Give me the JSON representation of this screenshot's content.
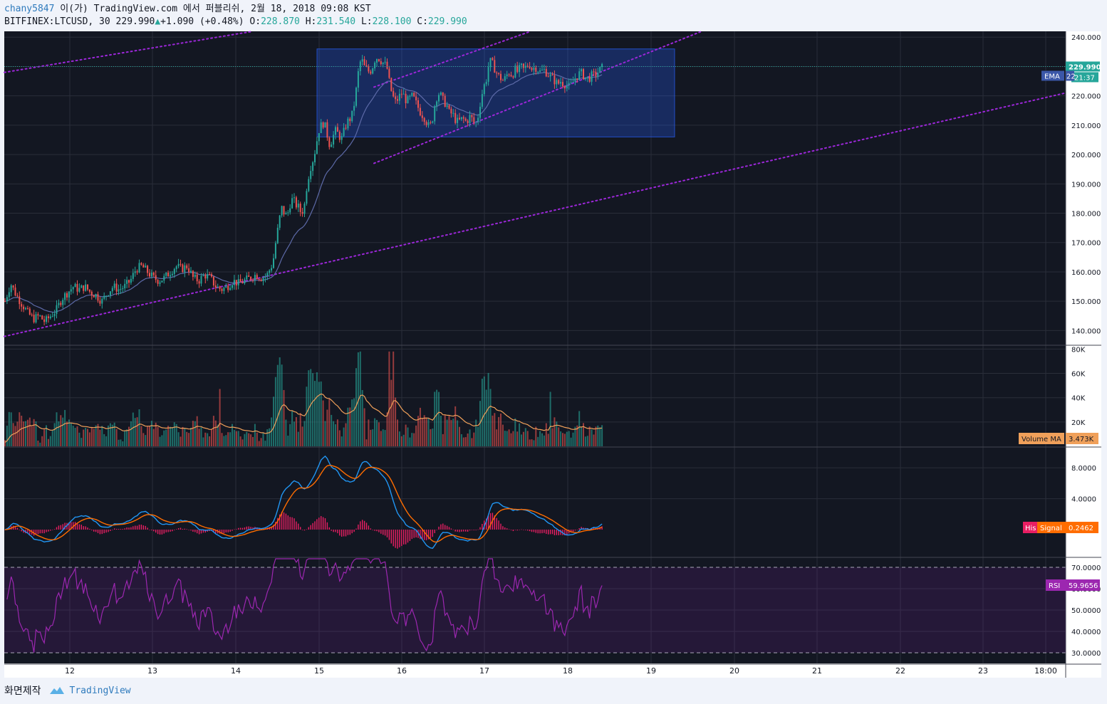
{
  "header": {
    "line1_user": "chany5847",
    "line1_rest": " 이(가) TradingView.com 에서 퍼블리쉬, 2월 18, 2018 09:08 KST",
    "symbol": "BITFINEX:LTCUSD, 30",
    "price": "229.990",
    "change": "+1.090 (+0.48%)",
    "o_label": "O:",
    "o_val": "228.870",
    "h_label": "H:",
    "h_val": "231.540",
    "l_label": "L:",
    "l_val": "228.100",
    "c_label": "C:",
    "c_val": "229.990"
  },
  "footer": {
    "credit": "화면제작",
    "brand": "TradingView"
  },
  "colors": {
    "bg": "#131722",
    "up": "#26a69a",
    "down": "#ef5350",
    "grid": "#2a2e39",
    "trend": "#9c27d9",
    "box": "#2962ff"
  },
  "chart_data": [
    {
      "type": "candlestick",
      "panel": "price",
      "ylim": [
        135,
        242
      ],
      "yticks": [
        "240.000",
        "230.000",
        "220.000",
        "210.000",
        "200.000",
        "190.000",
        "180.000",
        "170.000",
        "160.000",
        "150.000",
        "140.000"
      ],
      "xticks": [
        "12",
        "13",
        "14",
        "15",
        "16",
        "17",
        "18",
        "19",
        "20",
        "21",
        "22",
        "23",
        "18:00"
      ],
      "price_label": "229.990",
      "ema_label": "EMA",
      "ema_value": "22",
      "countdown": "21:37",
      "close_series": [
        [
          0,
          150
        ],
        [
          8,
          156
        ],
        [
          16,
          152
        ],
        [
          24,
          149
        ],
        [
          32,
          146
        ],
        [
          40,
          144
        ],
        [
          48,
          145
        ],
        [
          56,
          143
        ],
        [
          64,
          145
        ],
        [
          72,
          147
        ],
        [
          80,
          151
        ],
        [
          88,
          153
        ],
        [
          96,
          155
        ],
        [
          104,
          154
        ],
        [
          112,
          155
        ],
        [
          120,
          153
        ],
        [
          128,
          152
        ],
        [
          136,
          150
        ],
        [
          144,
          153
        ],
        [
          152,
          155
        ],
        [
          160,
          154
        ],
        [
          168,
          155
        ],
        [
          176,
          157
        ],
        [
          184,
          161
        ],
        [
          192,
          162
        ],
        [
          200,
          160
        ],
        [
          208,
          158
        ],
        [
          216,
          157
        ],
        [
          224,
          158
        ],
        [
          232,
          160
        ],
        [
          240,
          162
        ],
        [
          248,
          161
        ],
        [
          256,
          162
        ],
        [
          264,
          158
        ],
        [
          272,
          157
        ],
        [
          280,
          159
        ],
        [
          288,
          158
        ],
        [
          296,
          155
        ],
        [
          304,
          154
        ],
        [
          312,
          155
        ],
        [
          320,
          157
        ],
        [
          328,
          156
        ],
        [
          336,
          157
        ],
        [
          344,
          158
        ],
        [
          352,
          159
        ],
        [
          360,
          158
        ],
        [
          368,
          159
        ],
        [
          376,
          163
        ],
        [
          380,
          170
        ],
        [
          384,
          176
        ],
        [
          388,
          182
        ],
        [
          392,
          180
        ],
        [
          396,
          179
        ],
        [
          400,
          183
        ],
        [
          404,
          185
        ],
        [
          408,
          183
        ],
        [
          412,
          182
        ],
        [
          416,
          180
        ],
        [
          420,
          182
        ],
        [
          424,
          190
        ],
        [
          428,
          195
        ],
        [
          432,
          198
        ],
        [
          436,
          202
        ],
        [
          440,
          208
        ],
        [
          444,
          210
        ],
        [
          448,
          211
        ],
        [
          452,
          207
        ],
        [
          456,
          203
        ],
        [
          460,
          206
        ],
        [
          464,
          208
        ],
        [
          468,
          207
        ],
        [
          472,
          205
        ],
        [
          476,
          208
        ],
        [
          480,
          211
        ],
        [
          484,
          212
        ],
        [
          488,
          214
        ],
        [
          492,
          220
        ],
        [
          496,
          228
        ],
        [
          500,
          233
        ],
        [
          504,
          230
        ],
        [
          508,
          229
        ],
        [
          512,
          228
        ],
        [
          516,
          230
        ],
        [
          520,
          233
        ],
        [
          524,
          233
        ],
        [
          528,
          232
        ],
        [
          532,
          231
        ],
        [
          536,
          230
        ],
        [
          540,
          224
        ],
        [
          544,
          220
        ],
        [
          548,
          218
        ],
        [
          552,
          219
        ],
        [
          556,
          221
        ],
        [
          560,
          220
        ],
        [
          564,
          218
        ],
        [
          568,
          219
        ],
        [
          572,
          220
        ],
        [
          576,
          218
        ],
        [
          580,
          216
        ],
        [
          584,
          214
        ],
        [
          588,
          213
        ],
        [
          592,
          211
        ],
        [
          596,
          209
        ],
        [
          600,
          212
        ],
        [
          604,
          218
        ],
        [
          608,
          221
        ],
        [
          612,
          220
        ],
        [
          616,
          218
        ],
        [
          620,
          217
        ],
        [
          624,
          214
        ],
        [
          628,
          214
        ],
        [
          632,
          212
        ],
        [
          636,
          211
        ],
        [
          640,
          212
        ],
        [
          644,
          212
        ],
        [
          648,
          211
        ],
        [
          652,
          213
        ],
        [
          656,
          212
        ],
        [
          660,
          210
        ],
        [
          664,
          213
        ],
        [
          668,
          219
        ],
        [
          672,
          223
        ],
        [
          676,
          226
        ],
        [
          680,
          232
        ],
        [
          684,
          231
        ],
        [
          688,
          229
        ],
        [
          692,
          227
        ],
        [
          696,
          226
        ],
        [
          700,
          225
        ],
        [
          704,
          227
        ],
        [
          708,
          228
        ],
        [
          712,
          227
        ],
        [
          716,
          229
        ],
        [
          720,
          228
        ],
        [
          724,
          230
        ],
        [
          728,
          229
        ],
        [
          732,
          230
        ],
        [
          736,
          231
        ],
        [
          740,
          229
        ],
        [
          744,
          230
        ],
        [
          748,
          229
        ],
        [
          752,
          228
        ],
        [
          756,
          229
        ],
        [
          760,
          228
        ],
        [
          764,
          227
        ],
        [
          768,
          226
        ],
        [
          772,
          225
        ],
        [
          776,
          224
        ],
        [
          780,
          225
        ],
        [
          784,
          224
        ],
        [
          788,
          224
        ],
        [
          792,
          223
        ],
        [
          796,
          224
        ],
        [
          800,
          226
        ],
        [
          804,
          227
        ],
        [
          808,
          228
        ],
        [
          812,
          227
        ],
        [
          816,
          226
        ],
        [
          820,
          226
        ],
        [
          824,
          227
        ],
        [
          828,
          227
        ],
        [
          832,
          228
        ],
        [
          836,
          229
        ],
        [
          840,
          230
        ]
      ],
      "annotations": [
        {
          "kind": "box",
          "x0": 445,
          "x1": 947,
          "y0": 206,
          "y1": 236
        },
        {
          "kind": "trendline",
          "x0": 6,
          "y0": 138,
          "x1": 1496,
          "y1": 221
        },
        {
          "kind": "trendline",
          "x0": 6,
          "y0": 228,
          "x1": 355,
          "y1": 242
        },
        {
          "kind": "trendline",
          "x0": 525,
          "y0": 197,
          "x1": 985,
          "y1": 242
        },
        {
          "kind": "trendline",
          "x0": 525,
          "y0": 223,
          "x1": 745,
          "y1": 242
        }
      ]
    },
    {
      "type": "bar",
      "panel": "volume",
      "ylim": [
        0,
        82
      ],
      "yticks": [
        "80K",
        "60K",
        "40K",
        "20K"
      ],
      "label": "Volume MA",
      "value": "3.473K"
    },
    {
      "type": "line",
      "panel": "macd",
      "ylim": [
        -3.5,
        10.5
      ],
      "yticks": [
        "8.0000",
        "4.0000"
      ],
      "labels": [
        "His",
        "Signal"
      ],
      "value": "0.2462"
    },
    {
      "type": "line",
      "panel": "rsi",
      "ylim": [
        25,
        74
      ],
      "yticks": [
        "70.0000",
        "60.0000",
        "50.0000",
        "40.0000",
        "30.0000"
      ],
      "label": "RSI",
      "value": "59.9656"
    }
  ]
}
